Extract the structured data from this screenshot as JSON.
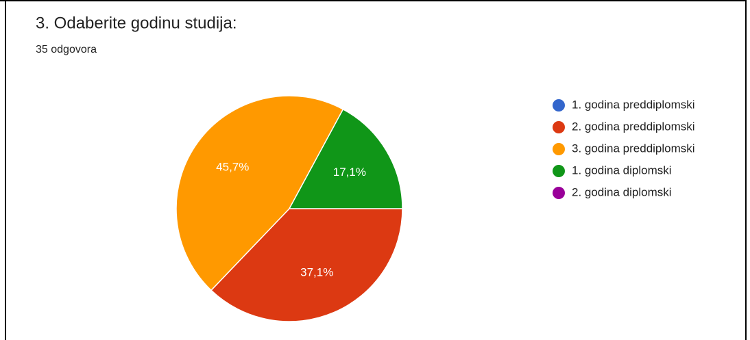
{
  "chart_data": {
    "type": "pie",
    "title": "3. Odaberite godinu studija:",
    "subtitle": "35 odgovora",
    "categories": [
      "1. godina preddiplomski",
      "2. godina preddiplomski",
      "3. godina preddiplomski",
      "1. godina diplomski",
      "2. godina diplomski"
    ],
    "values": [
      0,
      37.1,
      45.7,
      17.1,
      0
    ],
    "value_labels": [
      null,
      "37,1%",
      "45,7%",
      "17,1%",
      null
    ],
    "colors": [
      "#3366cc",
      "#dc3912",
      "#ff9900",
      "#109618",
      "#990099"
    ],
    "legend": "right"
  }
}
